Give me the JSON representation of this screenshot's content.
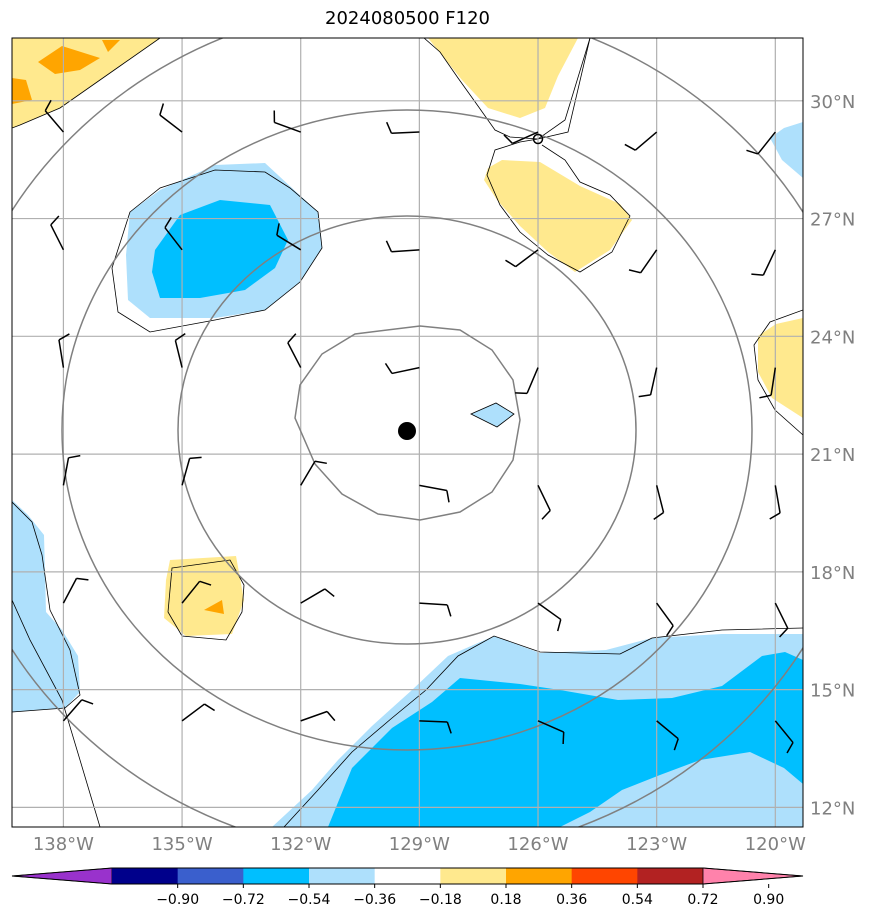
{
  "title": "2024080500 F120",
  "map": {
    "lon_range": [
      -139.3,
      -119.3
    ],
    "lat_range": [
      11.5,
      31.6
    ],
    "lat_ticks": [
      {
        "value": 12,
        "label": "12°N"
      },
      {
        "value": 15,
        "label": "15°N"
      },
      {
        "value": 18,
        "label": "18°N"
      },
      {
        "value": 21,
        "label": "21°N"
      },
      {
        "value": 24,
        "label": "24°N"
      },
      {
        "value": 27,
        "label": "27°N"
      },
      {
        "value": 30,
        "label": "30°N"
      }
    ],
    "lon_ticks": [
      {
        "value": -138,
        "label": "138°W"
      },
      {
        "value": -135,
        "label": "135°W"
      },
      {
        "value": -132,
        "label": "132°W"
      },
      {
        "value": -129,
        "label": "129°W"
      },
      {
        "value": -126,
        "label": "126°W"
      },
      {
        "value": -123,
        "label": "123°W"
      },
      {
        "value": -120,
        "label": "120°W"
      }
    ],
    "storm_center": {
      "lon": -129.3,
      "lat": 21.6
    },
    "colors": {
      "light_blue": "#aee0fc",
      "blue": "#00bfff",
      "light_yellow": "#ffe98e",
      "orange": "#ffa500",
      "grid": "#b0b0b0",
      "range_ring": "#808080"
    }
  },
  "colorbar": {
    "colors": [
      "#9932cc",
      "#00008b",
      "#3a5fcd",
      "#00bfff",
      "#aee0fc",
      "#ffffff",
      "#ffe98e",
      "#ffa500",
      "#ff4500",
      "#b22222",
      "#ff82ab"
    ],
    "tick_labels": [
      "−0.90",
      "−0.72",
      "−0.54",
      "−0.36",
      "−0.18",
      "0.18",
      "0.36",
      "0.54",
      "0.72",
      "0.90"
    ]
  }
}
